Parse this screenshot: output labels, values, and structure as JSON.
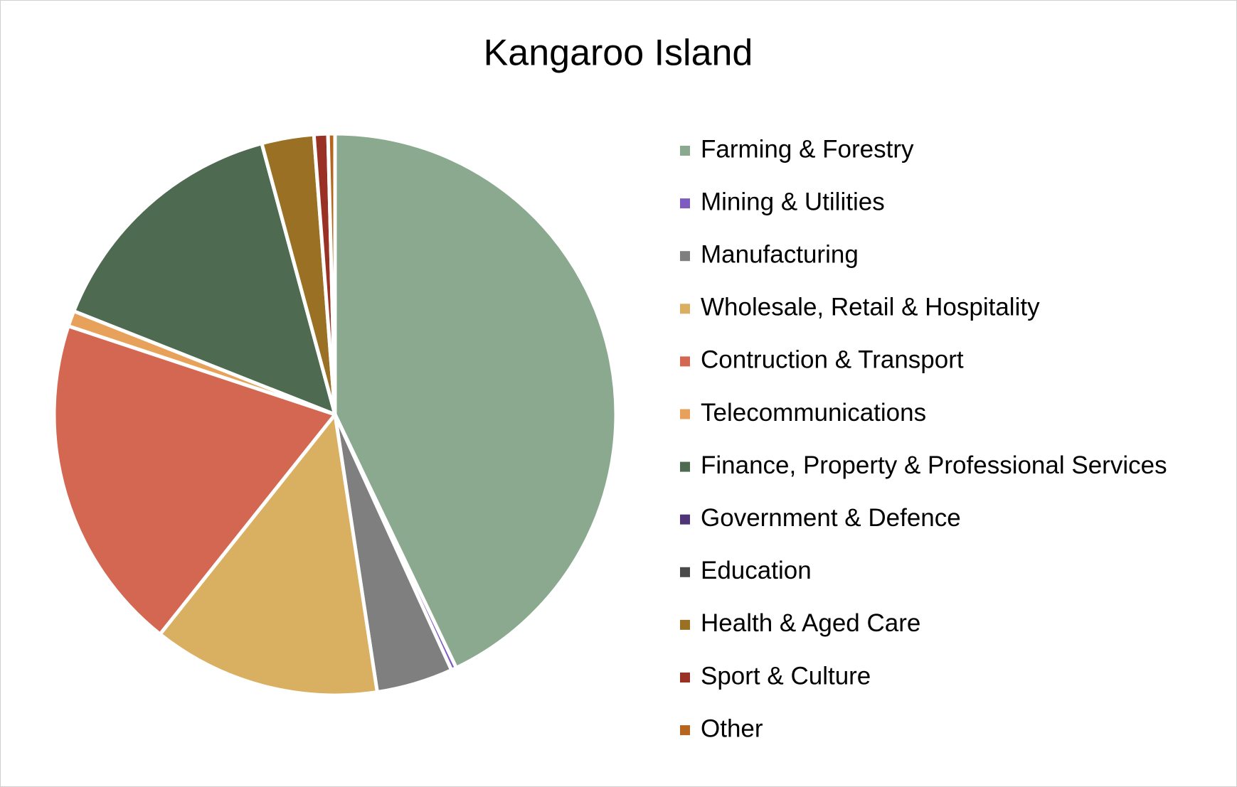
{
  "chart_data": {
    "type": "pie",
    "title": "Kangaroo Island",
    "categories": [
      "Farming & Forestry",
      "Mining & Utilities",
      "Manufacturing",
      "Wholesale, Retail & Hospitality",
      "Contruction & Transport",
      "Telecommunications",
      "Finance, Property & Professional Services",
      "Government & Defence",
      "Education",
      "Health & Aged Care",
      "Sport & Culture",
      "Other"
    ],
    "values": [
      42.9,
      0.3,
      4.4,
      13.1,
      19.4,
      0.9,
      14.8,
      0,
      0,
      3.0,
      0.8,
      0.4
    ],
    "colors": [
      "#8aa98f",
      "#7e5bc0",
      "#7f7f7f",
      "#d9b062",
      "#d36752",
      "#e7a15b",
      "#4e6a51",
      "#4f3577",
      "#4a4a4a",
      "#9a7024",
      "#9a3125",
      "#b5651d"
    ],
    "legend": "right"
  }
}
